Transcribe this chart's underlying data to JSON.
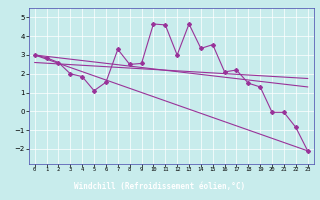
{
  "xlabel": "Windchill (Refroidissement éolien,°C)",
  "background_color": "#c8ecec",
  "line_color": "#993399",
  "x_ticks": [
    0,
    1,
    2,
    3,
    4,
    5,
    6,
    7,
    8,
    9,
    10,
    11,
    12,
    13,
    14,
    15,
    16,
    17,
    18,
    19,
    20,
    21,
    22,
    23
  ],
  "ylim": [
    -2.8,
    5.5
  ],
  "xlim": [
    -0.5,
    23.5
  ],
  "yticks": [
    -2,
    -1,
    0,
    1,
    2,
    3,
    4,
    5
  ],
  "grid_color": "#ffffff",
  "spine_color": "#4444aa",
  "xlabel_bg": "#333399",
  "xlabel_fg": "#ffffff",
  "line1_x": [
    0,
    1,
    2,
    3,
    4,
    5,
    6,
    7,
    8,
    9,
    10,
    11,
    12,
    13,
    14,
    15,
    16,
    17,
    18,
    19,
    20,
    21,
    22,
    23
  ],
  "line1_y": [
    3.0,
    2.85,
    2.6,
    2.0,
    1.85,
    1.1,
    1.55,
    3.3,
    2.5,
    2.55,
    4.65,
    4.6,
    3.0,
    4.65,
    3.35,
    3.55,
    2.1,
    2.2,
    1.5,
    1.3,
    -0.05,
    -0.05,
    -0.85,
    -2.1
  ],
  "line2_x": [
    0,
    23
  ],
  "line2_y": [
    3.0,
    -2.1
  ],
  "line3_x": [
    0,
    23
  ],
  "line3_y": [
    3.0,
    1.3
  ],
  "line4_x": [
    0,
    23
  ],
  "line4_y": [
    2.6,
    1.75
  ]
}
